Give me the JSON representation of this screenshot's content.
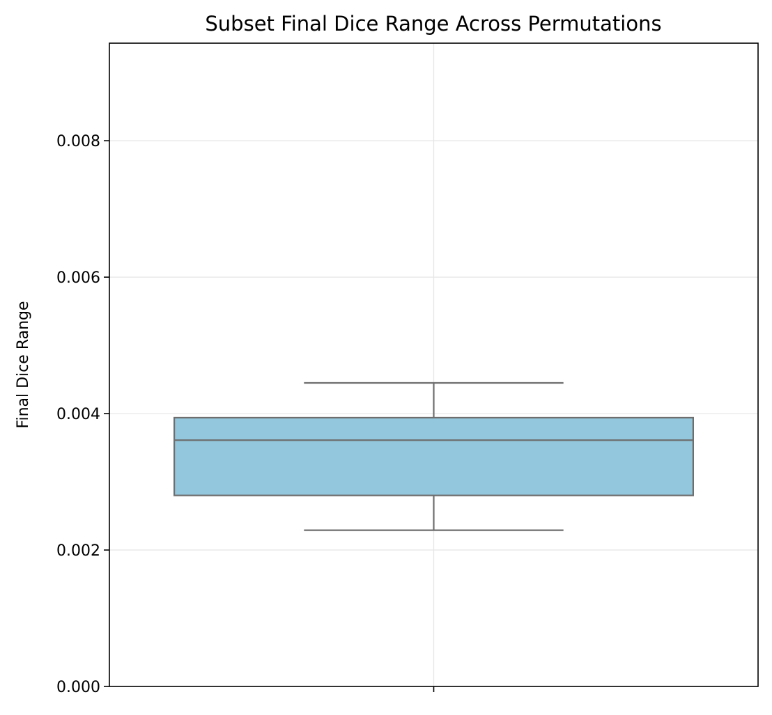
{
  "chart_data": {
    "type": "box",
    "title": "Subset Final Dice Range Across Permutations",
    "xlabel": "",
    "ylabel": "Final Dice Range",
    "ylim": [
      0,
      0.00943
    ],
    "yticks": [
      0.0,
      0.002,
      0.004,
      0.006,
      0.008
    ],
    "ytick_labels": [
      "0.000",
      "0.002",
      "0.004",
      "0.006",
      "0.008"
    ],
    "grid": true,
    "legend": "none",
    "boxes": [
      {
        "category": "",
        "whisker_low": 0.00229,
        "q1": 0.0028,
        "median": 0.00361,
        "q3": 0.00394,
        "whisker_high": 0.00445
      }
    ]
  },
  "colors": {
    "box_fill": "#92c7dd",
    "box_edge": "#6e6e6e",
    "grid": "#e5e5e5",
    "axis": "#000000"
  }
}
